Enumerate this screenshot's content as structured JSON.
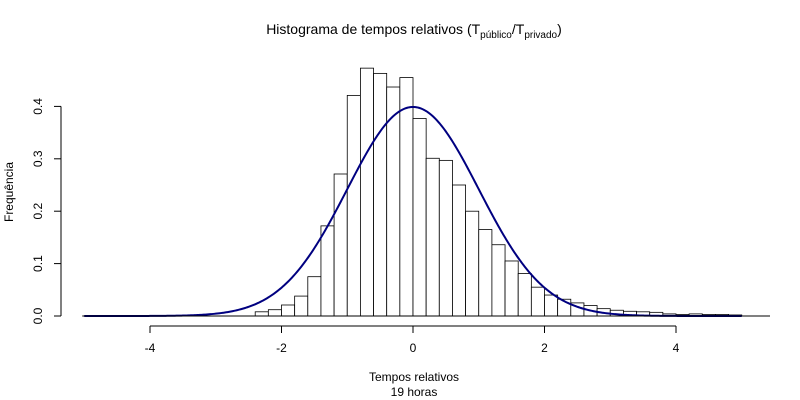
{
  "chart_data": {
    "type": "bar",
    "title": {
      "main": "Histograma de tempos relativos (T",
      "sub1": "público",
      "slash": "/T",
      "sub2": "privado",
      "close": ")"
    },
    "xlabel": "Tempos relativos",
    "xlabel_sub": "19 horas",
    "ylabel": "Frequência",
    "xlim": [
      -5,
      5.4
    ],
    "ylim": [
      0,
      0.45
    ],
    "xticks": [
      -4,
      -2,
      0,
      2,
      4
    ],
    "xtick_labels": [
      "-4",
      "-2",
      "0",
      "2",
      "4"
    ],
    "yticks": [
      0.0,
      0.1,
      0.2,
      0.3,
      0.4
    ],
    "ytick_labels": [
      "0.0",
      "0.1",
      "0.2",
      "0.3",
      "0.4"
    ],
    "bin_width": 0.2,
    "bins_start": -2.4,
    "values": [
      0.008,
      0.012,
      0.021,
      0.038,
      0.075,
      0.172,
      0.271,
      0.421,
      0.473,
      0.463,
      0.437,
      0.455,
      0.377,
      0.301,
      0.297,
      0.25,
      0.2,
      0.165,
      0.136,
      0.105,
      0.081,
      0.055,
      0.04,
      0.032,
      0.025,
      0.02,
      0.014,
      0.011,
      0.009,
      0.008,
      0.007,
      0.004,
      0.003,
      0.004,
      0.003,
      0.003,
      0.002
    ],
    "series": [
      {
        "type": "line",
        "distribution": "normal",
        "mean": 0,
        "sd": 1,
        "color": "#000080"
      }
    ],
    "grid": false,
    "bar_fill": "#ffffff",
    "bar_stroke": "#000000"
  }
}
